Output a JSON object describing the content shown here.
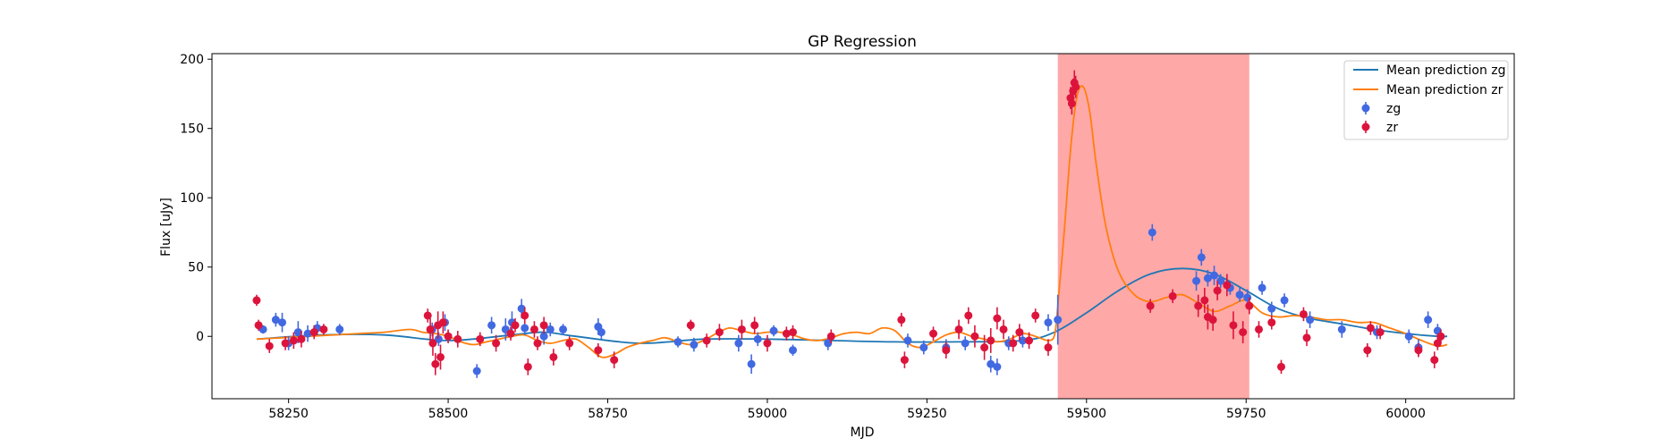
{
  "chart_data": {
    "type": "scatter",
    "title": "GP Regression",
    "xlabel": "MJD",
    "ylabel": "Flux [uJy]",
    "xlim": [
      58130,
      60170
    ],
    "ylim": [
      -45,
      204
    ],
    "xticks": [
      58250,
      58500,
      58750,
      59000,
      59250,
      59500,
      59750,
      60000
    ],
    "yticks": [
      0,
      50,
      100,
      150,
      200
    ],
    "grid": false,
    "legend_position": "top-right",
    "highlight_span": {
      "x0": 59455,
      "x1": 59755,
      "color": "#ffa8a8"
    },
    "lines": [
      {
        "name": "Mean prediction zg",
        "color": "#1f77b4",
        "x": [
          58200,
          58300,
          58400,
          58500,
          58600,
          58650,
          58700,
          58800,
          58900,
          59000,
          59100,
          59200,
          59300,
          59400,
          59450,
          59500,
          59550,
          59600,
          59650,
          59700,
          59750,
          59800,
          59850,
          59900,
          59950,
          60000,
          60050,
          60065
        ],
        "y": [
          -2,
          1,
          1,
          -3,
          1,
          3,
          0,
          -5,
          -2,
          -2,
          -3,
          -4,
          -4,
          -3,
          3,
          17,
          33,
          45,
          49,
          45,
          33,
          20,
          13,
          9,
          5,
          2,
          0,
          0
        ]
      },
      {
        "name": "Mean prediction zr",
        "color": "#ff7f0e",
        "x": [
          58200,
          58240,
          58280,
          58320,
          58360,
          58400,
          58440,
          58460,
          58480,
          58500,
          58520,
          58540,
          58560,
          58580,
          58600,
          58620,
          58640,
          58660,
          58680,
          58700,
          58720,
          58740,
          58760,
          58780,
          58800,
          58820,
          58840,
          58860,
          58880,
          58900,
          58920,
          58940,
          58960,
          58980,
          59000,
          59020,
          59040,
          59060,
          59080,
          59100,
          59120,
          59140,
          59160,
          59180,
          59200,
          59220,
          59240,
          59260,
          59280,
          59300,
          59320,
          59340,
          59360,
          59380,
          59400,
          59420,
          59440,
          59450,
          59455,
          59465,
          59475,
          59485,
          59495,
          59505,
          59515,
          59530,
          59550,
          59575,
          59600,
          59625,
          59650,
          59675,
          59700,
          59725,
          59750,
          59775,
          59800,
          59825,
          59850,
          59875,
          59900,
          59925,
          59950,
          59975,
          60000,
          60025,
          60050,
          60065
        ],
        "y": [
          -2,
          -1,
          0,
          1,
          2,
          3,
          5,
          3,
          2,
          0,
          -4,
          -6,
          -4,
          -2,
          0,
          1,
          -3,
          -5,
          -3,
          -2,
          -8,
          -15,
          -13,
          -8,
          -5,
          -3,
          -1,
          -4,
          -6,
          -3,
          2,
          6,
          4,
          2,
          3,
          3,
          1,
          -2,
          -3,
          -1,
          2,
          3,
          2,
          6,
          4,
          -5,
          -8,
          -4,
          1,
          3,
          0,
          -2,
          -4,
          -2,
          2,
          0,
          -3,
          1,
          22,
          75,
          135,
          173,
          180,
          162,
          125,
          80,
          47,
          30,
          25,
          28,
          30,
          24,
          18,
          22,
          26,
          17,
          14,
          15,
          14,
          12,
          12,
          10,
          10,
          6,
          2,
          -3,
          -7,
          -6
        ]
      }
    ],
    "series": [
      {
        "name": "zg",
        "color": "#4169e1",
        "x": [
          58210,
          58230,
          58240,
          58250,
          58265,
          58280,
          58295,
          58330,
          58475,
          58485,
          58495,
          58500,
          58545,
          58568,
          58590,
          58600,
          58615,
          58620,
          58650,
          58660,
          58680,
          58735,
          58740,
          58860,
          58885,
          58955,
          58975,
          58985,
          59010,
          59040,
          59095,
          59220,
          59245,
          59280,
          59310,
          59350,
          59360,
          59378,
          59400,
          59440,
          59455,
          59603,
          59672,
          59680,
          59690,
          59700,
          59710,
          59725,
          59740,
          59752,
          59775,
          59790,
          59810,
          59850,
          59900,
          59955,
          60005,
          60020,
          60035,
          60050
        ],
        "y": [
          5,
          12,
          10,
          -5,
          3,
          2,
          6,
          5,
          5,
          -2,
          10,
          0,
          -25,
          8,
          5,
          10,
          20,
          6,
          0,
          5,
          5,
          7,
          3,
          -4,
          -6,
          -5,
          -20,
          -2,
          4,
          -10,
          -5,
          -3,
          -8,
          -8,
          -5,
          -20,
          -22,
          -5,
          -3,
          10,
          12,
          75,
          40,
          57,
          42,
          44,
          40,
          35,
          30,
          28,
          35,
          20,
          26,
          12,
          5,
          3,
          0,
          -8,
          12,
          4
        ],
        "err": [
          3,
          5,
          7,
          5,
          8,
          6,
          5,
          4,
          5,
          5,
          6,
          4,
          5,
          6,
          8,
          8,
          7,
          5,
          6,
          5,
          4,
          6,
          5,
          4,
          5,
          6,
          7,
          5,
          4,
          4,
          5,
          5,
          5,
          6,
          5,
          6,
          6,
          5,
          5,
          6,
          18,
          6,
          7,
          6,
          6,
          7,
          5,
          5,
          5,
          6,
          5,
          5,
          5,
          6,
          6,
          5,
          5,
          6,
          6,
          5
        ]
      },
      {
        "name": "zr",
        "color": "#dc143c",
        "x": [
          58200,
          58203,
          58220,
          58245,
          58258,
          58270,
          58290,
          58305,
          58468,
          58472,
          58476,
          58480,
          58484,
          58488,
          58492,
          58500,
          58515,
          58550,
          58575,
          58598,
          58605,
          58620,
          58625,
          58635,
          58640,
          58650,
          58665,
          58690,
          58735,
          58760,
          58880,
          58905,
          58925,
          58960,
          58980,
          59000,
          59030,
          59040,
          59100,
          59210,
          59215,
          59260,
          59280,
          59300,
          59315,
          59325,
          59340,
          59350,
          59360,
          59370,
          59385,
          59395,
          59410,
          59420,
          59440,
          59475,
          59477,
          59479,
          59481,
          59483,
          59600,
          59635,
          59675,
          59685,
          59690,
          59698,
          59705,
          59720,
          59730,
          59745,
          59755,
          59770,
          59790,
          59805,
          59840,
          59845,
          59940,
          59945,
          59960,
          60020,
          60045,
          60050,
          60055
        ],
        "y": [
          26,
          8,
          -7,
          -5,
          -3,
          -2,
          3,
          5,
          15,
          5,
          -5,
          -20,
          8,
          -15,
          10,
          0,
          -2,
          -2,
          -5,
          2,
          8,
          15,
          -22,
          5,
          -5,
          8,
          -15,
          -5,
          -10,
          -17,
          8,
          -3,
          3,
          5,
          8,
          -5,
          2,
          3,
          0,
          12,
          -17,
          2,
          -10,
          5,
          15,
          0,
          -8,
          -3,
          13,
          5,
          -5,
          3,
          -3,
          15,
          -8,
          172,
          168,
          177,
          183,
          180,
          22,
          29,
          22,
          26,
          14,
          12,
          33,
          37,
          8,
          3,
          22,
          5,
          10,
          -22,
          16,
          -1,
          -10,
          6,
          3,
          -10,
          -17,
          -5,
          0
        ],
        "err": [
          4,
          4,
          5,
          5,
          6,
          6,
          5,
          4,
          5,
          8,
          9,
          8,
          10,
          9,
          8,
          5,
          6,
          5,
          6,
          5,
          5,
          6,
          6,
          6,
          5,
          6,
          6,
          5,
          5,
          6,
          4,
          5,
          6,
          7,
          6,
          6,
          5,
          5,
          5,
          5,
          6,
          5,
          6,
          7,
          6,
          8,
          9,
          9,
          8,
          7,
          6,
          6,
          6,
          5,
          6,
          8,
          8,
          9,
          9,
          8,
          5,
          5,
          8,
          9,
          9,
          8,
          7,
          8,
          10,
          8,
          6,
          6,
          5,
          5,
          5,
          6,
          5,
          5,
          5,
          5,
          6,
          5,
          5
        ]
      }
    ]
  }
}
